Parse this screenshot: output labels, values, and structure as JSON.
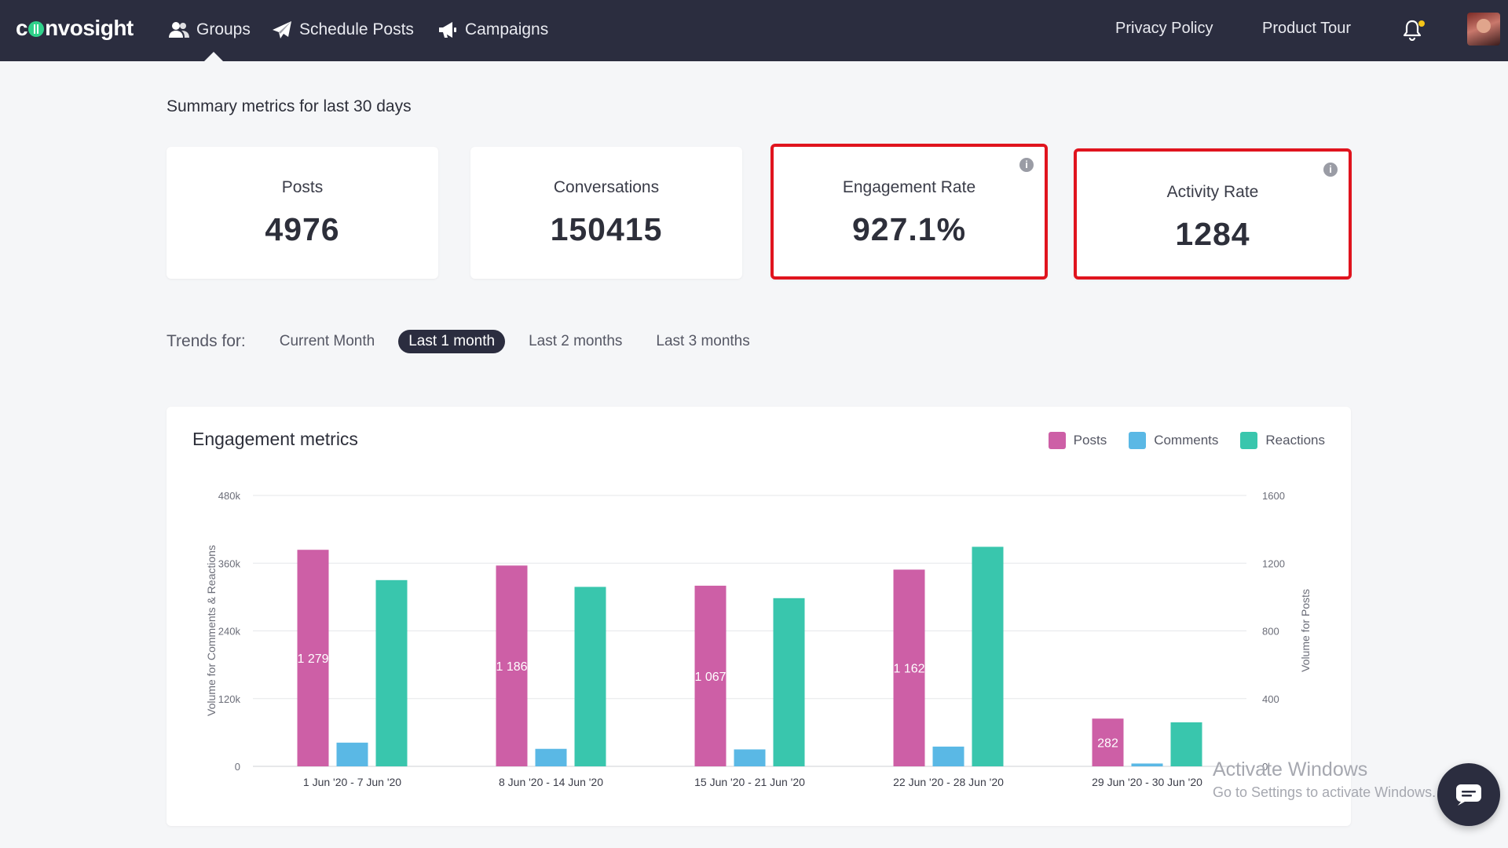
{
  "brand": {
    "logo_pre": "c",
    "logo_post": "nvosight"
  },
  "nav": {
    "groups": "Groups",
    "schedule": "Schedule Posts",
    "campaigns": "Campaigns",
    "privacy": "Privacy Policy",
    "tour": "Product Tour"
  },
  "summary": {
    "title": "Summary metrics for last 30 days",
    "cards": [
      {
        "label": "Posts",
        "value": "4976"
      },
      {
        "label": "Conversations",
        "value": "150415"
      },
      {
        "label": "Engagement Rate",
        "value": "927.1%"
      },
      {
        "label": "Activity Rate",
        "value": "1284"
      }
    ]
  },
  "trends": {
    "label": "Trends for:",
    "options": [
      "Current Month",
      "Last 1 month",
      "Last 2 months",
      "Last 3 months"
    ],
    "selected": "Last 1 month"
  },
  "chart_panel": {
    "title": "Engagement metrics",
    "legend": [
      "Posts",
      "Comments",
      "Reactions"
    ]
  },
  "chart_data": {
    "type": "bar",
    "categories": [
      "1 Jun '20 - 7 Jun '20",
      "8 Jun '20 - 14 Jun '20",
      "15 Jun '20 - 21 Jun '20",
      "22 Jun '20 - 28 Jun '20",
      "29 Jun '20 - 30 Jun '20"
    ],
    "series": [
      {
        "name": "Posts",
        "axis": "right",
        "values": [
          1279,
          1186,
          1067,
          1162,
          282
        ],
        "labels": [
          "1 279",
          "1 186",
          "1 067",
          "1 162",
          "282"
        ],
        "color": "#cd5fa6"
      },
      {
        "name": "Comments",
        "axis": "left",
        "values": [
          42000,
          31000,
          30000,
          35000,
          5000
        ],
        "color": "#5ab8e5"
      },
      {
        "name": "Reactions",
        "axis": "left",
        "values": [
          330000,
          318000,
          298000,
          389000,
          78000
        ],
        "color": "#39c6ad"
      }
    ],
    "left_axis": {
      "label": "Volume for Comments & Reactions",
      "range": [
        0,
        480000
      ],
      "ticks": [
        "0",
        "120k",
        "240k",
        "360k",
        "480k"
      ]
    },
    "right_axis": {
      "label": "Volume for Posts",
      "range": [
        0,
        1600
      ],
      "ticks": [
        "0",
        "400",
        "800",
        "1200",
        "1600"
      ]
    },
    "grid": true,
    "legend_position": "top-right"
  },
  "overlay": {
    "activate_title": "Activate Windows",
    "activate_sub": "Go to Settings to activate Windows."
  },
  "colors": {
    "nav_bg": "#2b2d3f",
    "highlight": "#e0141e",
    "posts": "#cd5fa6",
    "comments": "#5ab8e5",
    "reactions": "#39c6ad"
  },
  "icons": {
    "groups": "users-icon",
    "schedule": "paper-plane-icon",
    "campaigns": "megaphone-icon",
    "bell": "bell-icon",
    "info": "info-icon",
    "chat": "chat-icon"
  }
}
